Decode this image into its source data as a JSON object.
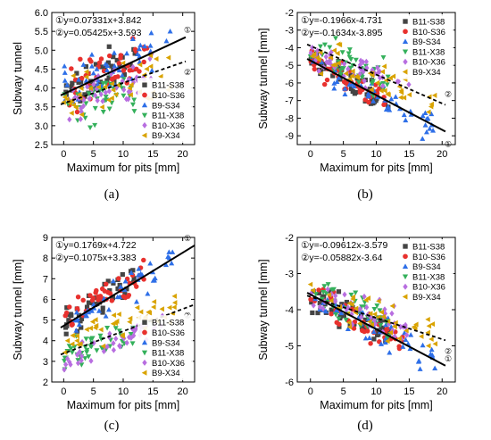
{
  "legend_names": [
    "B11-S38",
    "B10-S36",
    "B9-S34",
    "B11-X38",
    "B10-X36",
    "B9-X34"
  ],
  "series_colors": [
    "#444444",
    "#e8312e",
    "#2e6fe8",
    "#34b05b",
    "#b86ee0",
    "#d9a300"
  ],
  "series_markers": [
    "square",
    "circle",
    "triangle-up",
    "triangle-down",
    "diamond",
    "triangle-left"
  ],
  "chart_data": [
    {
      "type": "scatter",
      "panel_label": "(a)",
      "xlabel": "Maximum for pits [mm]",
      "ylabel": "Subway tunnel",
      "xlim": [
        -2,
        22
      ],
      "ylim": [
        2.5,
        6.0
      ],
      "xticks": [
        "0",
        "5",
        "10",
        "15",
        "20"
      ],
      "yticks": [
        "2.5",
        "3.0",
        "3.5",
        "4.0",
        "4.5",
        "5.0",
        "5.5",
        "6.0"
      ],
      "legend_position": "bottom-right",
      "fit_lines": [
        {
          "circle": "①",
          "equation": "y=0.07331x+3.842",
          "slope": 0.07331,
          "intercept": 3.842,
          "style": "solid",
          "x_range": [
            -0.5,
            20.5
          ]
        },
        {
          "circle": "②",
          "equation": "y=0.05425x+3.593",
          "slope": 0.05425,
          "intercept": 3.593,
          "style": "dashed",
          "x_range": [
            -0.5,
            20.5
          ]
        }
      ],
      "series": [
        {
          "name": "B11-S38",
          "x_range": [
            0,
            12
          ],
          "slope": 0.073,
          "intercept": 3.9,
          "spread": 0.45
        },
        {
          "name": "B10-S36",
          "x_range": [
            0,
            14
          ],
          "slope": 0.075,
          "intercept": 3.85,
          "spread": 0.45
        },
        {
          "name": "B9-S34",
          "x_range": [
            0,
            18
          ],
          "slope": 0.08,
          "intercept": 3.9,
          "spread": 0.5
        },
        {
          "name": "B11-X38",
          "x_range": [
            0,
            12
          ],
          "slope": 0.05,
          "intercept": 3.5,
          "spread": 0.5
        },
        {
          "name": "B10-X36",
          "x_range": [
            0,
            15
          ],
          "slope": 0.055,
          "intercept": 3.6,
          "spread": 0.4
        },
        {
          "name": "B9-X34",
          "x_range": [
            0,
            18
          ],
          "slope": 0.05,
          "intercept": 3.6,
          "spread": 0.45
        }
      ]
    },
    {
      "type": "scatter",
      "panel_label": "(b)",
      "xlabel": "Maximum for pits [mm]",
      "ylabel": "Subway tunnel [mm]",
      "xlim": [
        -2,
        22
      ],
      "ylim": [
        -9.5,
        -2
      ],
      "xticks": [
        "0",
        "5",
        "10",
        "15",
        "20"
      ],
      "yticks": [
        "-2",
        "-3",
        "-4",
        "-5",
        "-6",
        "-7",
        "-8",
        "-9"
      ],
      "legend_position": "top-right",
      "fit_lines": [
        {
          "circle": "①",
          "equation": "y=-0.1966x-4.731",
          "slope": -0.1966,
          "intercept": -4.731,
          "style": "solid",
          "x_range": [
            -0.5,
            20.5
          ]
        },
        {
          "circle": "②",
          "equation": "y=-0.1634x-3.895",
          "slope": -0.1634,
          "intercept": -3.895,
          "style": "dashed",
          "x_range": [
            -0.5,
            20.5
          ]
        }
      ],
      "series": [
        {
          "name": "B11-S38",
          "x_range": [
            0,
            12
          ],
          "slope": -0.2,
          "intercept": -4.7,
          "spread": 0.6
        },
        {
          "name": "B10-S36",
          "x_range": [
            0,
            12
          ],
          "slope": -0.19,
          "intercept": -4.8,
          "spread": 0.6
        },
        {
          "name": "B9-S34",
          "x_range": [
            0,
            19
          ],
          "slope": -0.2,
          "intercept": -4.8,
          "spread": 0.6
        },
        {
          "name": "B11-X38",
          "x_range": [
            0,
            12
          ],
          "slope": -0.17,
          "intercept": -3.9,
          "spread": 0.8
        },
        {
          "name": "B10-X36",
          "x_range": [
            0,
            15
          ],
          "slope": -0.1,
          "intercept": -4.6,
          "spread": 0.6
        },
        {
          "name": "B9-X34",
          "x_range": [
            0,
            19
          ],
          "slope": -0.16,
          "intercept": -4.2,
          "spread": 0.7
        }
      ]
    },
    {
      "type": "scatter",
      "panel_label": "(c)",
      "xlabel": "Maximum for pits [mm]",
      "ylabel": "Subway tunnel [mm]",
      "xlim": [
        -2,
        22
      ],
      "ylim": [
        2,
        9
      ],
      "xticks": [
        "0",
        "5",
        "10",
        "15",
        "20"
      ],
      "yticks": [
        "2",
        "3",
        "4",
        "5",
        "6",
        "7",
        "8",
        "9"
      ],
      "legend_position": "bottom-right",
      "fit_lines": [
        {
          "circle": "①",
          "equation": "y=0.1769x+4.722",
          "slope": 0.1769,
          "intercept": 4.722,
          "style": "solid",
          "x_range": [
            -0.5,
            22
          ]
        },
        {
          "circle": "②",
          "equation": "y=0.1075x+3.383",
          "slope": 0.1075,
          "intercept": 3.383,
          "style": "dashed",
          "x_range": [
            -0.5,
            22
          ]
        }
      ],
      "series": [
        {
          "name": "B11-S38",
          "x_range": [
            0,
            12
          ],
          "slope": 0.18,
          "intercept": 4.8,
          "spread": 0.5
        },
        {
          "name": "B10-S36",
          "x_range": [
            0,
            14
          ],
          "slope": 0.18,
          "intercept": 4.9,
          "spread": 0.5
        },
        {
          "name": "B9-S34",
          "x_range": [
            0,
            19
          ],
          "slope": 0.18,
          "intercept": 4.6,
          "spread": 0.6
        },
        {
          "name": "B11-X38",
          "x_range": [
            0,
            12
          ],
          "slope": 0.1,
          "intercept": 3.2,
          "spread": 0.5
        },
        {
          "name": "B10-X36",
          "x_range": [
            0,
            17
          ],
          "slope": 0.12,
          "intercept": 2.9,
          "spread": 0.4
        },
        {
          "name": "B9-X34",
          "x_range": [
            0,
            19
          ],
          "slope": 0.09,
          "intercept": 3.9,
          "spread": 0.5
        }
      ]
    },
    {
      "type": "scatter",
      "panel_label": "(d)",
      "xlabel": "Maximum for pits [mm]",
      "ylabel": "Subway tunnel [mm]",
      "xlim": [
        -2,
        22
      ],
      "ylim": [
        -6,
        -2
      ],
      "xticks": [
        "0",
        "5",
        "10",
        "15",
        "20"
      ],
      "yticks": [
        "-2",
        "-3",
        "-4",
        "-5",
        "-6"
      ],
      "legend_position": "top-right",
      "fit_lines": [
        {
          "circle": "①",
          "equation": "y=-0.09612x-3.579",
          "slope": -0.09612,
          "intercept": -3.579,
          "style": "solid",
          "x_range": [
            -0.5,
            20.5
          ]
        },
        {
          "circle": "②",
          "equation": "y=-0.05882x-3.64",
          "slope": -0.05882,
          "intercept": -3.64,
          "style": "dashed",
          "x_range": [
            -0.5,
            20.5
          ]
        }
      ],
      "series": [
        {
          "name": "B11-S38",
          "x_range": [
            0,
            12
          ],
          "slope": -0.1,
          "intercept": -3.6,
          "spread": 0.35
        },
        {
          "name": "B10-S36",
          "x_range": [
            0,
            14
          ],
          "slope": -0.1,
          "intercept": -3.6,
          "spread": 0.35
        },
        {
          "name": "B9-S34",
          "x_range": [
            0,
            19
          ],
          "slope": -0.095,
          "intercept": -3.55,
          "spread": 0.35
        },
        {
          "name": "B11-X38",
          "x_range": [
            0,
            12
          ],
          "slope": -0.06,
          "intercept": -3.6,
          "spread": 0.35
        },
        {
          "name": "B10-X36",
          "x_range": [
            0,
            15
          ],
          "slope": -0.055,
          "intercept": -3.65,
          "spread": 0.35
        },
        {
          "name": "B9-X34",
          "x_range": [
            0,
            19
          ],
          "slope": -0.06,
          "intercept": -3.6,
          "spread": 0.35
        }
      ]
    }
  ]
}
